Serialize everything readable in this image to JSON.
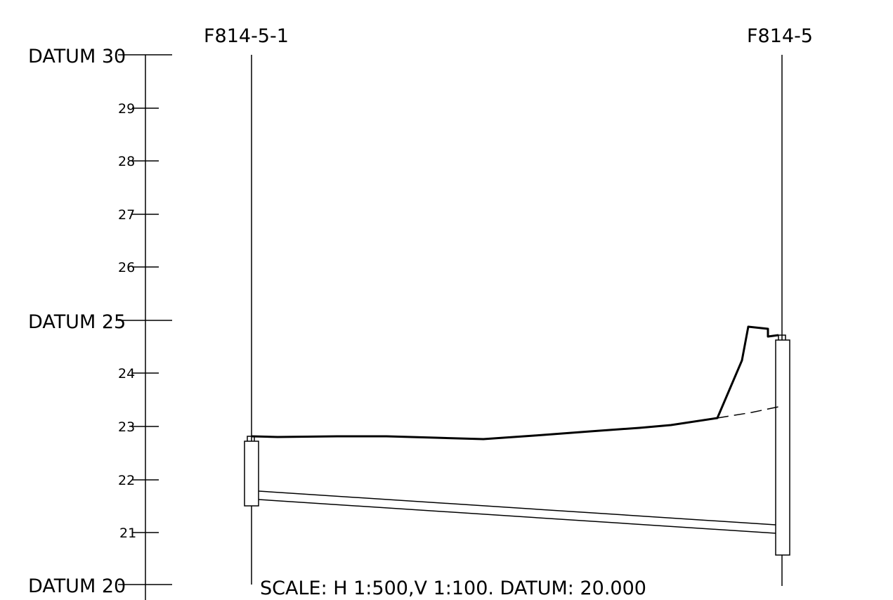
{
  "drawing": {
    "manholes": {
      "upstream": "F814-5-1",
      "downstream": "F814-5"
    },
    "datum_labels": [
      "DATUM 30",
      "DATUM 25",
      "DATUM 20"
    ],
    "tick_labels": [
      "29",
      "28",
      "27",
      "26",
      "24",
      "23",
      "22",
      "21"
    ],
    "scale_note": "SCALE: H 1:500,V 1:100. DATUM: 20.000"
  }
}
